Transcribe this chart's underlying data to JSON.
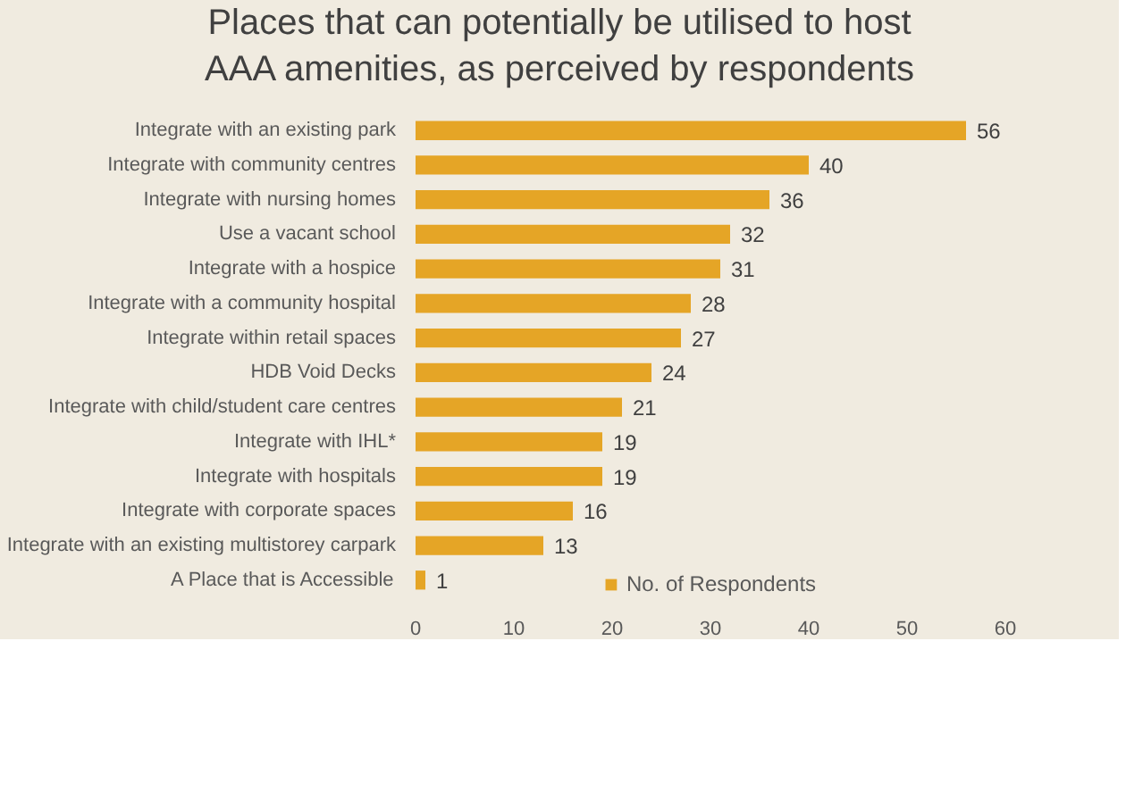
{
  "chart_data": {
    "type": "bar",
    "orientation": "horizontal",
    "title": "Places that can potentially be utilised to host AAA amenities, as perceived by respondents",
    "categories": [
      "Integrate with an existing park",
      "Integrate with community centres",
      "Integrate with nursing homes",
      "Use a vacant school",
      "Integrate with a hospice",
      "Integrate with a community hospital",
      "Integrate within retail spaces",
      "HDB Void Decks",
      "Integrate with child/student care centres",
      "Integrate with IHL*",
      "Integrate with hospitals",
      "Integrate with corporate spaces",
      "Integrate with an existing multistorey carpark",
      "A Place that is Accessible"
    ],
    "series": [
      {
        "name": "No. of Respondents",
        "color": "#e5a526",
        "values": [
          56,
          40,
          36,
          32,
          31,
          28,
          27,
          24,
          21,
          19,
          19,
          16,
          13,
          1
        ]
      }
    ],
    "xlim": [
      0,
      60
    ],
    "xticks": [
      0,
      10,
      20,
      30,
      40,
      50,
      60
    ],
    "data_labels": true,
    "grid": false,
    "legend": "bottom"
  }
}
